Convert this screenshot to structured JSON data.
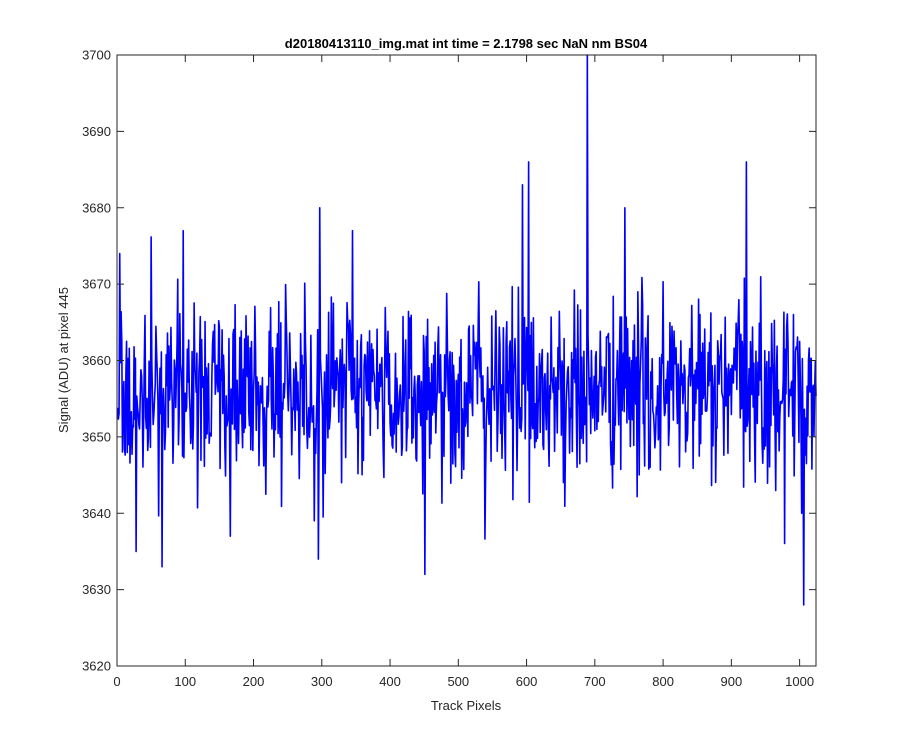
{
  "chart_data": {
    "type": "line",
    "title": "d20180413110_img.mat int time = 2.1798 sec  NaN nm BS04",
    "xlabel": "Track Pixels",
    "ylabel": "Signal (ADU) at pixel 445",
    "xlim": [
      0,
      1024
    ],
    "ylim": [
      3620,
      3700
    ],
    "x_ticks": [
      0,
      100,
      200,
      300,
      400,
      500,
      600,
      700,
      800,
      900,
      1000
    ],
    "y_ticks": [
      3620,
      3630,
      3640,
      3650,
      3660,
      3670,
      3680,
      3690,
      3700
    ],
    "grid": false,
    "line_color": "#0000ff",
    "series": [
      {
        "x_start": 1,
        "x_step": 1,
        "values_description_free": true,
        "baseline": 3656,
        "noise_std": 6,
        "seed": 445,
        "count": 1024,
        "spikes": [
          {
            "x": 4,
            "y": 3674
          },
          {
            "x": 28,
            "y": 3635
          },
          {
            "x": 66,
            "y": 3633
          },
          {
            "x": 97,
            "y": 3677
          },
          {
            "x": 166,
            "y": 3637
          },
          {
            "x": 297,
            "y": 3680
          },
          {
            "x": 295,
            "y": 3634
          },
          {
            "x": 345,
            "y": 3677
          },
          {
            "x": 451,
            "y": 3632
          },
          {
            "x": 603,
            "y": 3686
          },
          {
            "x": 594,
            "y": 3683
          },
          {
            "x": 689,
            "y": 3700
          },
          {
            "x": 744,
            "y": 3680
          },
          {
            "x": 922,
            "y": 3686
          },
          {
            "x": 1006,
            "y": 3628
          },
          {
            "x": 1003,
            "y": 3640
          }
        ]
      }
    ]
  }
}
